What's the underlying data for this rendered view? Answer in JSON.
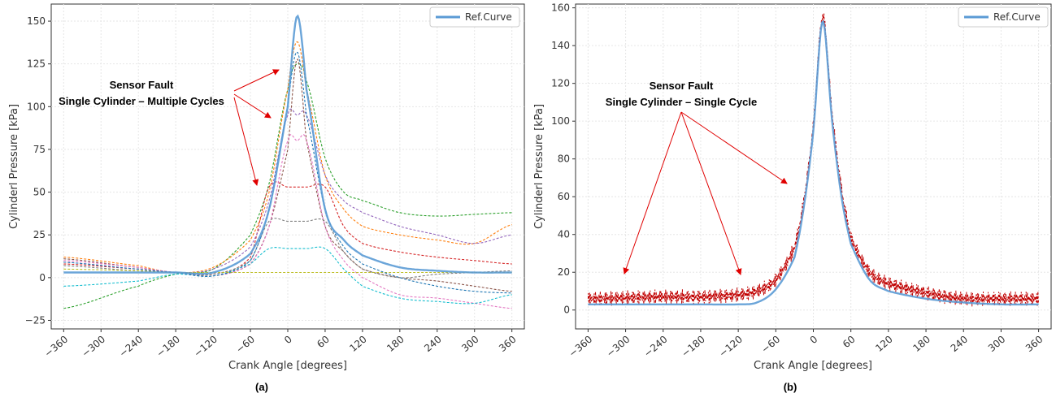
{
  "chart_data": [
    {
      "type": "line",
      "panel": "a",
      "caption": "(a)",
      "xlabel": "Crank Angle [degrees]",
      "ylabel": "Cylinderl Pressure [kPa]",
      "xlim": [
        -380,
        380
      ],
      "ylim": [
        -30,
        160
      ],
      "xticks": [
        -360,
        -300,
        -240,
        -180,
        -120,
        -60,
        0,
        60,
        120,
        180,
        240,
        300,
        360
      ],
      "yticks": [
        -25,
        0,
        25,
        50,
        75,
        100,
        125,
        150
      ],
      "grid": true,
      "legend": {
        "placement": "top-right",
        "entries": [
          "Ref.Curve"
        ]
      },
      "annotation": {
        "lines": [
          "Sensor Fault",
          "Single Cylinder – Multiple Cycles"
        ]
      },
      "series": [
        {
          "name": "Ref.Curve",
          "style": "solid",
          "color": "#5b9bd5",
          "x": [
            -360,
            -240,
            -180,
            -120,
            -60,
            -30,
            0,
            15,
            30,
            60,
            90,
            120,
            180,
            240,
            300,
            360
          ],
          "y": [
            3,
            3,
            3,
            3,
            14,
            40,
            100,
            153,
            110,
            40,
            22,
            13,
            6,
            4,
            3,
            3
          ]
        },
        {
          "name": "",
          "style": "dashed",
          "color": "#2ca02c",
          "x": [
            -360,
            -240,
            -180,
            -120,
            -60,
            -30,
            0,
            15,
            30,
            60,
            90,
            120,
            180,
            240,
            300,
            360
          ],
          "y": [
            -18,
            -5,
            2,
            5,
            25,
            55,
            110,
            125,
            115,
            70,
            50,
            45,
            38,
            36,
            37,
            38
          ]
        },
        {
          "name": "",
          "style": "dashed",
          "color": "#ff7f0e",
          "x": [
            -360,
            -240,
            -180,
            -120,
            -60,
            -30,
            0,
            15,
            30,
            60,
            90,
            120,
            180,
            240,
            300,
            360
          ],
          "y": [
            12,
            7,
            3,
            6,
            22,
            50,
            110,
            138,
            110,
            60,
            40,
            30,
            25,
            22,
            20,
            31
          ]
        },
        {
          "name": "",
          "style": "dashed",
          "color": "#d62728",
          "x": [
            -360,
            -240,
            -180,
            -120,
            -60,
            -30,
            0,
            15,
            30,
            60,
            90,
            120,
            180,
            240,
            300,
            360
          ],
          "y": [
            8,
            5,
            3,
            2,
            12,
            53,
            53,
            53,
            53,
            53,
            30,
            20,
            15,
            12,
            10,
            8
          ]
        },
        {
          "name": "",
          "style": "dashed",
          "color": "#9467bd",
          "x": [
            -360,
            -240,
            -180,
            -120,
            -60,
            -30,
            0,
            15,
            30,
            60,
            90,
            120,
            180,
            240,
            300,
            360
          ],
          "y": [
            9,
            5,
            3,
            5,
            18,
            45,
            95,
            95,
            95,
            60,
            45,
            38,
            30,
            25,
            20,
            25
          ]
        },
        {
          "name": "",
          "style": "dashed",
          "color": "#8c564b",
          "x": [
            -360,
            -240,
            -180,
            -120,
            -60,
            -30,
            0,
            15,
            30,
            60,
            90,
            120,
            180,
            240,
            300,
            360
          ],
          "y": [
            11,
            6,
            3,
            1,
            8,
            30,
            75,
            128,
            80,
            30,
            15,
            5,
            0,
            -2,
            -5,
            -8
          ]
        },
        {
          "name": "",
          "style": "dashed",
          "color": "#e377c2",
          "x": [
            -360,
            -240,
            -180,
            -120,
            -60,
            -30,
            0,
            15,
            30,
            60,
            90,
            120,
            180,
            240,
            300,
            360
          ],
          "y": [
            10,
            6,
            3,
            1,
            8,
            30,
            80,
            80,
            80,
            30,
            10,
            0,
            -10,
            -12,
            -15,
            -18
          ]
        },
        {
          "name": "",
          "style": "dashed",
          "color": "#17becf",
          "x": [
            -360,
            -240,
            -180,
            -120,
            -60,
            -30,
            0,
            15,
            30,
            60,
            90,
            120,
            180,
            240,
            300,
            360
          ],
          "y": [
            -5,
            -2,
            2,
            1,
            8,
            17,
            17,
            17,
            17,
            17,
            5,
            -5,
            -12,
            -14,
            -15,
            -10
          ]
        },
        {
          "name": "",
          "style": "dashed",
          "color": "#7f7f7f",
          "x": [
            -360,
            -240,
            -180,
            -120,
            -60,
            -30,
            0,
            15,
            30,
            60,
            90,
            120,
            180,
            240,
            300,
            360
          ],
          "y": [
            7,
            4,
            3,
            2,
            10,
            33,
            33,
            33,
            33,
            33,
            15,
            5,
            0,
            2,
            3,
            4
          ]
        },
        {
          "name": "",
          "style": "dashed",
          "color": "#bcbd22",
          "x": [
            -360,
            -240,
            -180,
            -120,
            -60,
            -30,
            0,
            15,
            30,
            60,
            90,
            120,
            180,
            240,
            300,
            360
          ],
          "y": [
            5,
            4,
            3,
            3,
            3,
            3,
            3,
            3,
            3,
            3,
            3,
            3,
            3,
            3,
            3,
            3
          ]
        },
        {
          "name": "",
          "style": "dashed",
          "color": "#1f77b4",
          "x": [
            -360,
            -240,
            -180,
            -120,
            -60,
            -30,
            0,
            15,
            30,
            60,
            90,
            120,
            180,
            240,
            300,
            360
          ],
          "y": [
            9,
            5,
            3,
            1,
            10,
            40,
            100,
            132,
            95,
            40,
            18,
            8,
            0,
            -5,
            -8,
            -9
          ]
        }
      ]
    },
    {
      "type": "line",
      "panel": "b",
      "caption": "(b)",
      "xlabel": "Crank Angle [degrees]",
      "ylabel": "Cylinderl Pressure [kPa]",
      "xlim": [
        -380,
        380
      ],
      "ylim": [
        -10,
        162
      ],
      "xticks": [
        -360,
        -300,
        -240,
        -180,
        -120,
        -60,
        0,
        60,
        120,
        180,
        240,
        300,
        360
      ],
      "yticks": [
        0,
        20,
        40,
        60,
        80,
        100,
        120,
        140,
        160
      ],
      "grid": true,
      "legend": {
        "placement": "top-right",
        "entries": [
          "Ref.Curve"
        ]
      },
      "annotation": {
        "lines": [
          "Sensor Fault",
          "Single Cylinder – Single Cycle"
        ]
      },
      "series": [
        {
          "name": "Ref.Curve",
          "style": "solid",
          "color": "#5b9bd5",
          "x": [
            -360,
            -240,
            -180,
            -120,
            -90,
            -60,
            -30,
            -15,
            0,
            15,
            30,
            45,
            60,
            90,
            120,
            180,
            240,
            300,
            360
          ],
          "y": [
            3,
            3,
            3,
            3,
            4,
            11,
            28,
            55,
            95,
            153,
            100,
            60,
            35,
            16,
            10,
            6,
            4,
            3,
            3
          ]
        },
        {
          "name": "",
          "style": "noisy-dashed",
          "color": "#c00000",
          "noise_amplitude": 4,
          "x": [
            -360,
            -240,
            -180,
            -120,
            -90,
            -60,
            -30,
            -15,
            0,
            15,
            30,
            45,
            60,
            90,
            120,
            180,
            240,
            300,
            360
          ],
          "y": [
            6,
            7,
            7,
            8,
            10,
            16,
            33,
            58,
            98,
            155,
            104,
            64,
            38,
            20,
            14,
            9,
            6,
            6,
            6
          ]
        }
      ]
    }
  ]
}
